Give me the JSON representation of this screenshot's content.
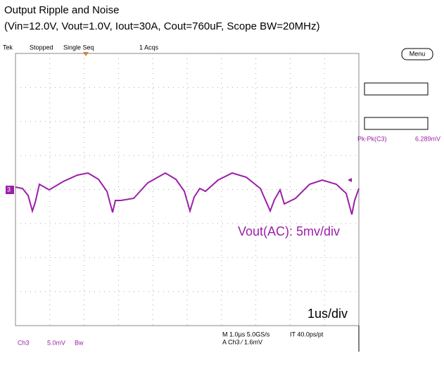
{
  "header": {
    "title": "Output Ripple and Noise",
    "subtitle": "(Vin=12.0V, Vout=1.0V, Iout=30A, Cout=760uF, Scope BW=20MHz)"
  },
  "scope": {
    "status": {
      "brand": "Tek",
      "state": "Stopped",
      "mode": "Single Seq",
      "acqs": "1 Acqs"
    },
    "menu": "Menu",
    "channel_marker": "3",
    "measurement": {
      "label": "Pk-Pk(C3)",
      "value": "6.289mV"
    },
    "annotations": {
      "vertical": "Vout(AC): 5mv/div",
      "horizontal": "1us/div"
    },
    "footer": {
      "channel": "Ch3",
      "scale": "5.0mV",
      "bw": "Bw",
      "timebase": "M 1.0µs 5.0GS/s",
      "interval": "IT 40.0ps/pt",
      "trigger": "A  Ch3  ⁄  1.6mV"
    }
  }
}
